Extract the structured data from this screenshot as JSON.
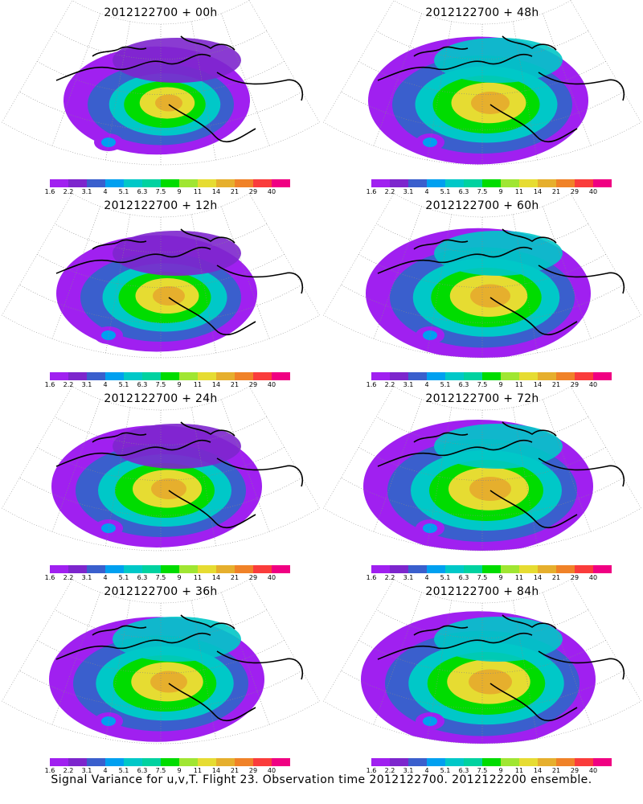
{
  "panels": [
    {
      "title": "2012122700 + 00h",
      "intensity": 0.35
    },
    {
      "title": "2012122700 + 12h",
      "intensity": 0.5
    },
    {
      "title": "2012122700 + 24h",
      "intensity": 0.6
    },
    {
      "title": "2012122700 + 36h",
      "intensity": 0.65
    },
    {
      "title": "2012122700 + 48h",
      "intensity": 0.7
    },
    {
      "title": "2012122700 + 60h",
      "intensity": 0.75
    },
    {
      "title": "2012122700 + 72h",
      "intensity": 0.8
    },
    {
      "title": "2012122700 + 84h",
      "intensity": 0.85
    }
  ],
  "colorbar": {
    "labels": [
      "1.6",
      "2.2",
      "3.1",
      "4",
      "5.1",
      "6.3",
      "7.5",
      "9",
      "11",
      "14",
      "21",
      "29",
      "40"
    ],
    "colors": [
      "#a020f0",
      "#7d26cd",
      "#3a5fcd",
      "#00a0f0",
      "#00c8c8",
      "#00d2a0",
      "#00dc00",
      "#a0e632",
      "#e6dc32",
      "#e6af2d",
      "#f08228",
      "#fa3c3c",
      "#f00082"
    ]
  },
  "footer": "Signal Variance for u,v,T. Flight 23. Observation time 2012122700. 2012122200 ensemble."
}
